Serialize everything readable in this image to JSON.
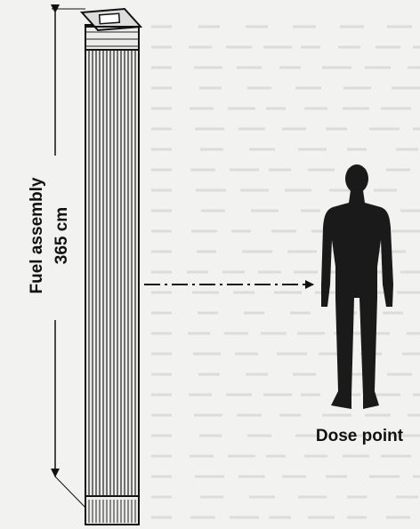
{
  "labels": {
    "assembly": "Fuel assembly",
    "length": "365 cm",
    "dose_point": "Dose point"
  }
}
